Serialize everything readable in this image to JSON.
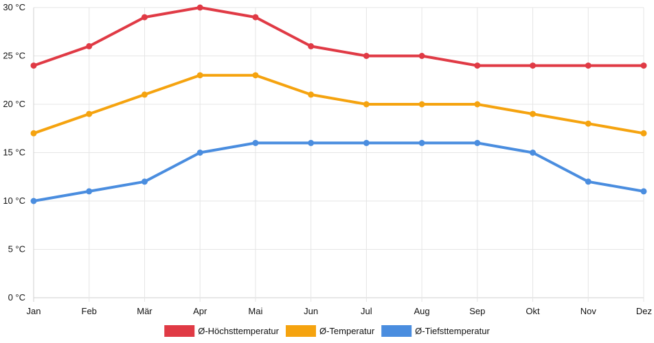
{
  "chart_data": {
    "type": "line",
    "title": "",
    "xlabel": "",
    "ylabel": "",
    "categories": [
      "Jan",
      "Feb",
      "Mär",
      "Apr",
      "Mai",
      "Jun",
      "Jul",
      "Aug",
      "Sep",
      "Okt",
      "Nov",
      "Dez"
    ],
    "ylim": [
      0,
      30
    ],
    "yticks": [
      0,
      5,
      10,
      15,
      20,
      25,
      30
    ],
    "ytick_labels": [
      "0 °C",
      "5 °C",
      "10 °C",
      "15 °C",
      "20 °C",
      "25 °C",
      "30 °C"
    ],
    "grid": true,
    "legend_position": "bottom-center",
    "series": [
      {
        "name": "Ø-Höchsttemperatur",
        "color": "#e03a45",
        "values": [
          24,
          26,
          29,
          30,
          29,
          26,
          25,
          25,
          24,
          24,
          24,
          24
        ]
      },
      {
        "name": "Ø-Temperatur",
        "color": "#f5a30f",
        "values": [
          17,
          19,
          21,
          23,
          23,
          21,
          20,
          20,
          20,
          19,
          18,
          17
        ]
      },
      {
        "name": "Ø-Tiefsttemperatur",
        "color": "#4a8ddf",
        "values": [
          10,
          11,
          12,
          15,
          16,
          16,
          16,
          16,
          16,
          15,
          12,
          11
        ]
      }
    ]
  }
}
